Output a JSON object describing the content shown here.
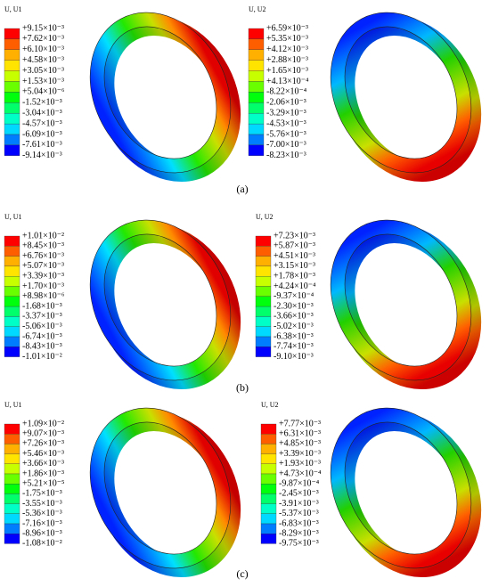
{
  "panels": [
    {
      "label": "(a)",
      "plots": [
        {
          "title": "U, U1",
          "values": [
            "+9.15×10⁻³",
            "+7.62×10⁻³",
            "+6.10×10⁻³",
            "+4.58×10⁻³",
            "+3.05×10⁻³",
            "+1.53×10⁻³",
            "+5.04×10⁻⁶",
            "-1.52×10⁻³",
            "-3.04×10⁻³",
            "-4.57×10⁻³",
            "-6.09×10⁻³",
            "-7.61×10⁻³",
            "-9.14×10⁻³"
          ]
        },
        {
          "title": "U, U2",
          "values": [
            "+6.59×10⁻³",
            "+5.35×10⁻³",
            "+4.12×10⁻³",
            "+2.88×10⁻³",
            "+1.65×10⁻³",
            "+4.13×10⁻⁴",
            "-8.22×10⁻⁴",
            "-2.06×10⁻³",
            "-3.29×10⁻³",
            "-4.53×10⁻³",
            "-5.76×10⁻³",
            "-7.00×10⁻³",
            "-8.23×10⁻³"
          ]
        }
      ]
    },
    {
      "label": "(b)",
      "plots": [
        {
          "title": "U, U1",
          "values": [
            "+1.01×10⁻²",
            "+8.45×10⁻³",
            "+6.76×10⁻³",
            "+5.07×10⁻³",
            "+3.39×10⁻³",
            "+1.70×10⁻³",
            "+8.98×10⁻⁶",
            "-1.68×10⁻³",
            "-3.37×10⁻³",
            "-5.06×10⁻³",
            "-6.74×10⁻³",
            "-8.43×10⁻³",
            "-1.01×10⁻²"
          ]
        },
        {
          "title": "U, U2",
          "values": [
            "+7.23×10⁻³",
            "+5.87×10⁻³",
            "+4.51×10⁻³",
            "+3.15×10⁻³",
            "+1.78×10⁻³",
            "+4.24×10⁻⁴",
            "-9.37×10⁻⁴",
            "-2.30×10⁻³",
            "-3.66×10⁻³",
            "-5.02×10⁻³",
            "-6.38×10⁻³",
            "-7.74×10⁻³",
            "-9.10×10⁻³"
          ]
        }
      ]
    },
    {
      "label": "(c)",
      "plots": [
        {
          "title": "U, U1",
          "values": [
            "+1.09×10⁻²",
            "+9.07×10⁻³",
            "+7.26×10⁻³",
            "+5.46×10⁻³",
            "+3.66×10⁻³",
            "+1.86×10⁻³",
            "+5.21×10⁻⁵",
            "-1.75×10⁻³",
            "-3.55×10⁻³",
            "-5.36×10⁻³",
            "-7.16×10⁻³",
            "-8.96×10⁻³",
            "-1.08×10⁻²"
          ]
        },
        {
          "title": "U, U2",
          "values": [
            "+7.77×10⁻³",
            "+6.31×10⁻³",
            "+4.85×10⁻³",
            "+3.39×10⁻³",
            "+1.93×10⁻³",
            "+4.73×10⁻⁴",
            "-9.87×10⁻⁴",
            "-2.45×10⁻³",
            "-3.91×10⁻³",
            "-5.37×10⁻³",
            "-6.83×10⁻³",
            "-8.29×10⁻³",
            "-9.75×10⁻³"
          ]
        }
      ]
    }
  ]
}
